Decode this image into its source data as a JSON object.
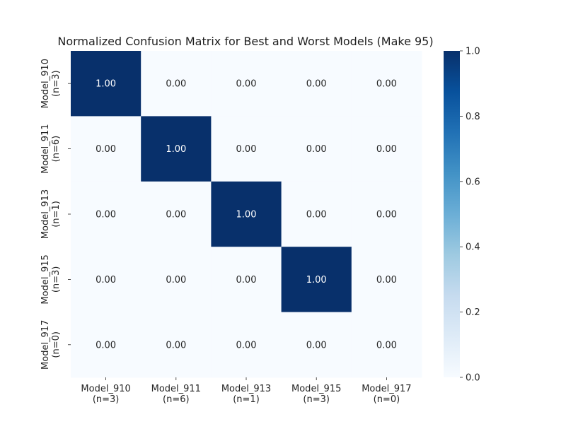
{
  "chart_data": {
    "type": "heatmap",
    "title": "Normalized Confusion Matrix for Best and Worst Models (Make 95)",
    "rows": [
      "Model_910\n(n=3)",
      "Model_911\n(n=6)",
      "Model_913\n(n=1)",
      "Model_915\n(n=3)",
      "Model_917\n(n=0)"
    ],
    "columns": [
      "Model_910\n(n=3)",
      "Model_911\n(n=6)",
      "Model_913\n(n=1)",
      "Model_915\n(n=3)",
      "Model_917\n(n=0)"
    ],
    "values": [
      [
        1.0,
        0.0,
        0.0,
        0.0,
        0.0
      ],
      [
        0.0,
        1.0,
        0.0,
        0.0,
        0.0
      ],
      [
        0.0,
        0.0,
        1.0,
        0.0,
        0.0
      ],
      [
        0.0,
        0.0,
        0.0,
        1.0,
        0.0
      ],
      [
        0.0,
        0.0,
        0.0,
        0.0,
        0.0
      ]
    ],
    "value_format": "0.00",
    "colormap": "Blues",
    "colorbar": {
      "range": [
        0.0,
        1.0
      ],
      "ticks": [
        "0.0",
        "0.2",
        "0.4",
        "0.6",
        "0.8",
        "1.0"
      ],
      "tick_values": [
        0.0,
        0.2,
        0.4,
        0.6,
        0.8,
        1.0
      ]
    },
    "colors": {
      "low": "#f7fbff",
      "high": "#08306b",
      "text_on_dark": "#ffffff",
      "text_on_light": "#262626"
    }
  }
}
